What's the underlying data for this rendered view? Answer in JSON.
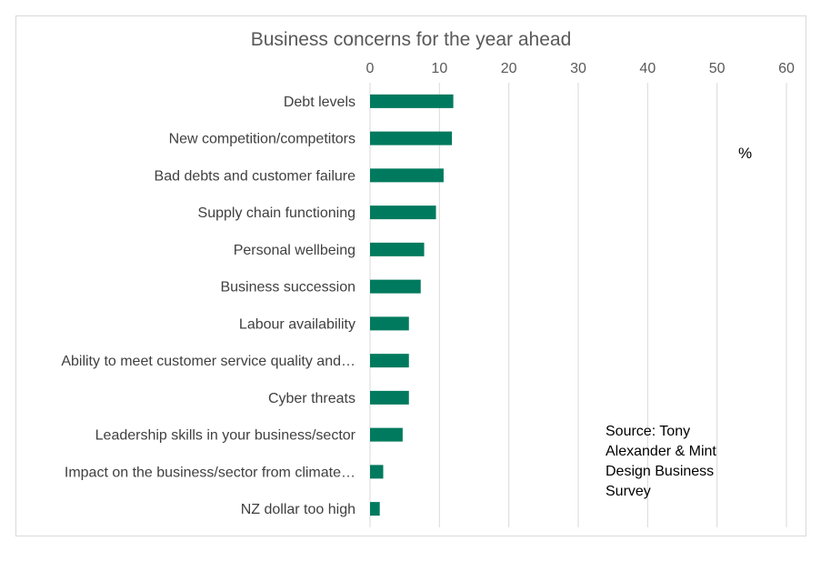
{
  "chart_data": {
    "type": "bar",
    "orientation": "horizontal",
    "title": "Business concerns for the year ahead",
    "unit_label": "%",
    "categories": [
      "Debt levels",
      "New competition/competitors",
      "Bad debts and customer failure",
      "Supply chain functioning",
      "Personal wellbeing",
      "Business succession",
      "Labour availability",
      "Ability to meet customer service quality and…",
      "Cyber threats",
      "Leadership skills in your business/sector",
      "Impact on the business/sector from climate…",
      "NZ dollar too high"
    ],
    "values": [
      12.0,
      11.8,
      10.6,
      9.5,
      7.8,
      7.3,
      5.6,
      5.6,
      5.6,
      4.7,
      1.9,
      1.4
    ],
    "xlim": [
      0,
      60
    ],
    "xticks": [
      "0",
      "10",
      "20",
      "30",
      "40",
      "50",
      "60"
    ],
    "x_axis_position": "top",
    "grid": true,
    "bar_color": "#007A5E",
    "source_note": [
      "Source: Tony",
      "Alexander  & Mint",
      "Design Business",
      "Survey"
    ]
  }
}
